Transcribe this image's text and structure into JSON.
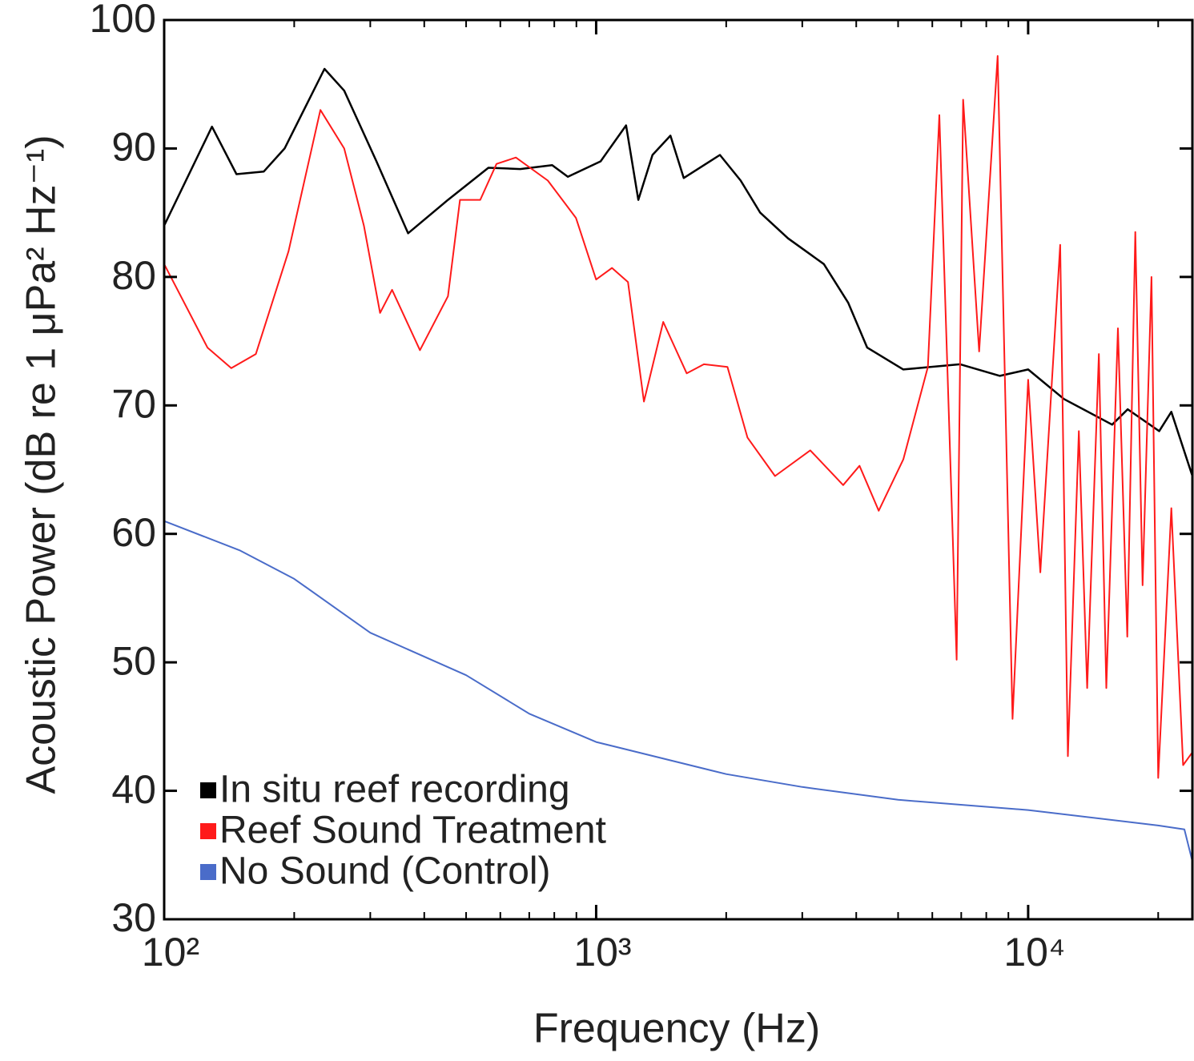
{
  "chart_data": {
    "type": "line",
    "xlabel": "Frequency (Hz)",
    "ylabel": "Acoustic Power (dB re 1 μPa² Hz⁻¹)",
    "log_x": true,
    "xlim": [
      100,
      24000
    ],
    "ylim": [
      30,
      100
    ],
    "xticks": [
      {
        "value": 100,
        "label": "10²"
      },
      {
        "value": 1000,
        "label": "10³"
      },
      {
        "value": 10000,
        "label": "10⁴"
      }
    ],
    "xminorticks": [
      200,
      300,
      400,
      500,
      600,
      700,
      800,
      900,
      2000,
      3000,
      4000,
      5000,
      6000,
      7000,
      8000,
      9000,
      20000
    ],
    "yticks": [
      30,
      40,
      50,
      60,
      70,
      80,
      90,
      100
    ],
    "legend": "lower left",
    "series": [
      {
        "name": "In situ reef recording",
        "color": "#000000",
        "x": [
          100,
          129,
          147,
          170,
          190,
          235,
          261,
          310,
          367,
          454,
          563,
          667,
          791,
          860,
          1024,
          1173,
          1252,
          1350,
          1486,
          1595,
          1934,
          2160,
          2397,
          2781,
          3366,
          3830,
          4240,
          5140,
          6960,
          8600,
          10000,
          12100,
          15650,
          17000,
          20100,
          21450,
          24000
        ],
        "values": [
          84,
          91.7,
          88,
          88.2,
          90,
          96.2,
          94.5,
          89,
          83.4,
          86,
          88.5,
          88.4,
          88.7,
          87.8,
          89,
          91.8,
          86,
          89.5,
          91,
          87.7,
          89.5,
          87.5,
          85,
          83,
          81,
          78,
          74.5,
          72.8,
          73.2,
          72.3,
          72.8,
          70.5,
          68.5,
          69.7,
          68,
          69.5,
          64.5
        ]
      },
      {
        "name": "Reef Sound Treatment",
        "color": "#ff1a1a",
        "x": [
          100,
          126,
          143,
          163,
          194,
          230,
          261,
          290,
          316,
          337,
          391,
          454,
          484,
          539,
          588,
          652,
          773,
          898,
          1000,
          1088,
          1185,
          1290,
          1430,
          1620,
          1776,
          2013,
          2240,
          2594,
          3130,
          3730,
          4070,
          4510,
          5140,
          5860,
          6230,
          6830,
          7070,
          7700,
          8500,
          9200,
          10000,
          10670,
          11860,
          12360,
          13100,
          13700,
          14580,
          15170,
          16140,
          16960,
          17700,
          18400,
          19300,
          20000,
          21450,
          22840,
          24000
        ],
        "values": [
          81,
          74.5,
          72.9,
          74,
          82,
          93,
          90,
          84,
          77.2,
          79,
          74.3,
          78.5,
          86,
          86,
          88.8,
          89.3,
          87.5,
          84.6,
          79.8,
          80.7,
          79.6,
          70.3,
          76.5,
          72.5,
          73.2,
          73,
          67.5,
          64.5,
          66.5,
          63.8,
          65.3,
          61.8,
          65.8,
          73,
          92.6,
          50.2,
          93.8,
          74.2,
          97.2,
          45.6,
          72,
          57,
          82.5,
          42.7,
          68,
          48,
          74,
          48,
          76,
          52,
          83.5,
          56,
          80,
          41,
          62,
          42,
          43
        ]
      },
      {
        "name": "No Sound (Control)",
        "color": "#4a6cc9",
        "x": [
          100,
          150,
          200,
          300,
          500,
          700,
          1000,
          2000,
          3000,
          5000,
          10000,
          20000,
          23000,
          24000
        ],
        "values": [
          61,
          58.7,
          56.5,
          52.3,
          49,
          46,
          43.8,
          41.3,
          40.3,
          39.3,
          38.5,
          37.3,
          37,
          34.5
        ]
      }
    ]
  }
}
